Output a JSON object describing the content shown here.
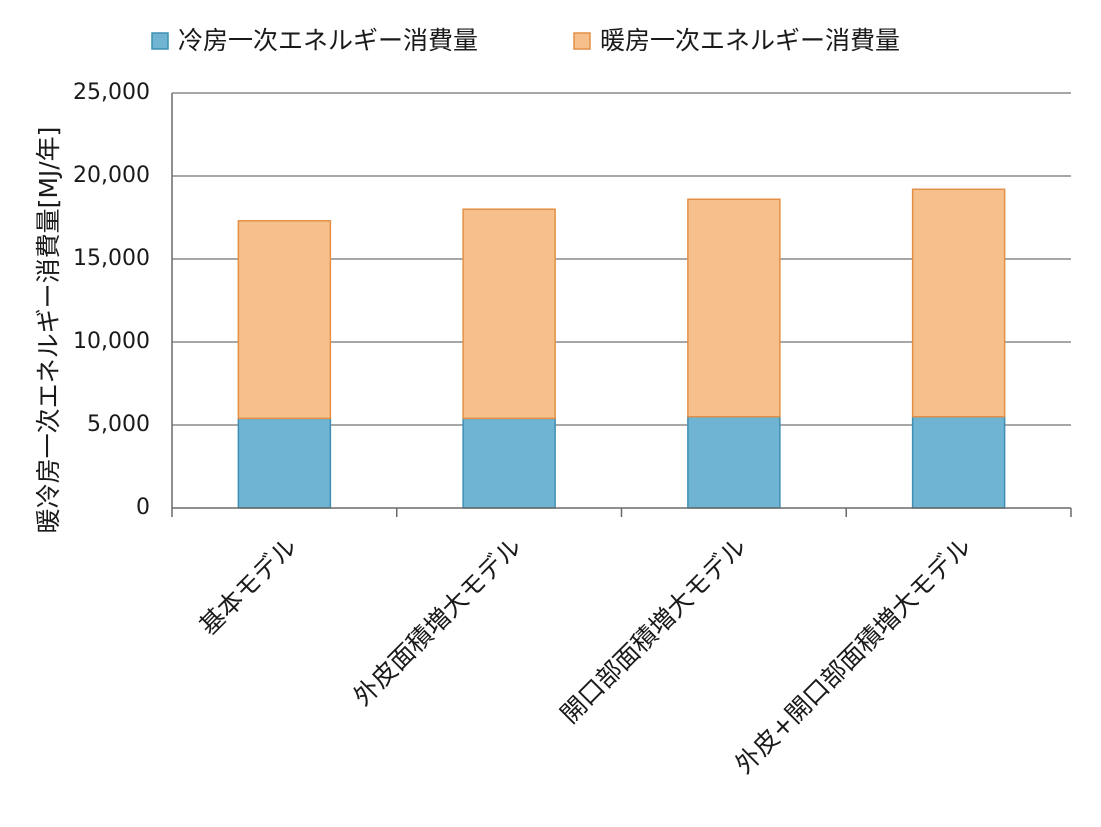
{
  "chart_data": {
    "type": "bar",
    "stacked": true,
    "categories": [
      "基本モデル",
      "外皮面積増大モデル",
      "開口部面積増大モデル",
      "外皮+開口部面積増大モデル"
    ],
    "series": [
      {
        "name": "冷房一次エネルギー消費量",
        "color": "#6fb5d3",
        "edge": "#3f8fb4",
        "values": [
          5400,
          5400,
          5500,
          5500
        ]
      },
      {
        "name": "暖房一次エネルギー消費量",
        "color": "#f6c08d",
        "edge": "#e39046",
        "values": [
          11900,
          12600,
          13100,
          13700
        ]
      }
    ],
    "ylabel": "暖冷房一次エネルギー消費量[MJ/年]",
    "ylim": [
      0,
      25000
    ],
    "yticks": [
      0,
      5000,
      10000,
      15000,
      20000,
      25000
    ],
    "ytick_labels": [
      "0",
      "5,000",
      "10,000",
      "15,000",
      "20,000",
      "25,000"
    ],
    "grid": true,
    "legend": "top"
  }
}
